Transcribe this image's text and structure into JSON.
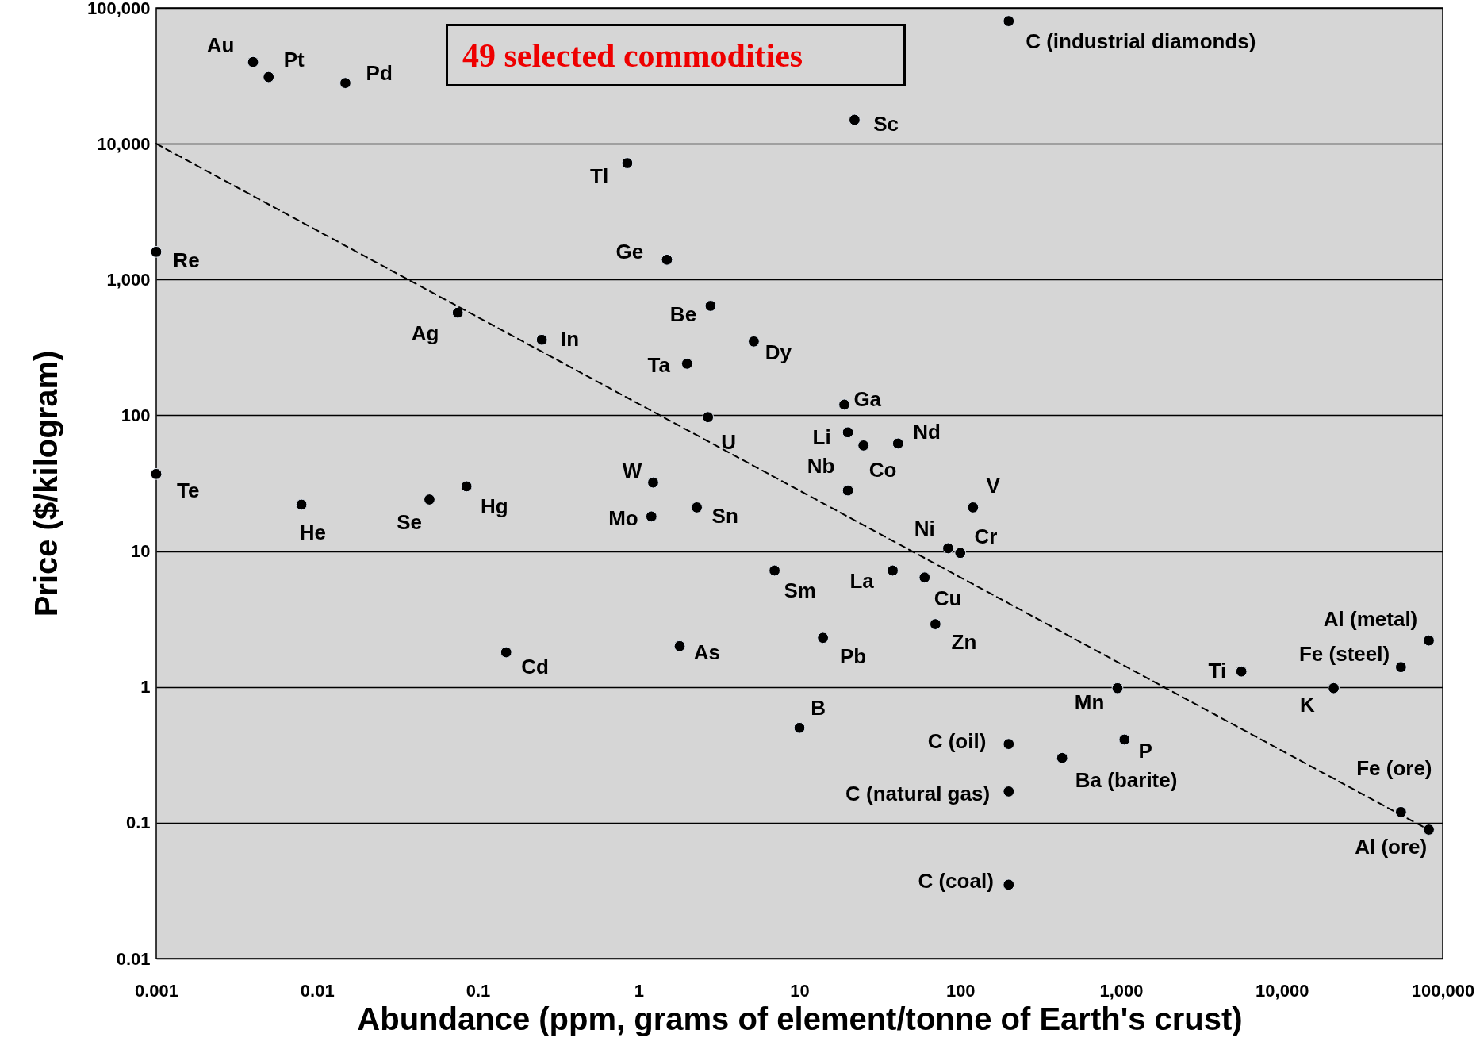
{
  "chart_data": {
    "type": "scatter",
    "xlabel": "Abundance (ppm, grams of element/tonne of Earth's crust)",
    "ylabel": "Price ($/kilogram)",
    "log": "xy",
    "grid": "y",
    "xlim": [
      0.001,
      100000
    ],
    "ylim": [
      0.01,
      100000
    ],
    "xticks": [
      0.001,
      0.01,
      0.1,
      1,
      10,
      100,
      {
        "value": 1000,
        "label": "1,000"
      },
      {
        "value": 10000,
        "label": "10,000"
      },
      {
        "value": 100000,
        "label": "100,000"
      }
    ],
    "yticks": [
      0.01,
      0.1,
      1,
      10,
      100,
      {
        "value": 1000,
        "label": "1,000"
      },
      {
        "value": 10000,
        "label": "10,000"
      },
      {
        "value": 100000,
        "label": "100,000"
      }
    ],
    "series": [
      {
        "color": "#000000",
        "marker": "circle",
        "x": [
          0.004,
          0.005,
          0.015,
          200,
          22,
          0.85,
          0.001,
          1.5,
          0.075,
          0.25,
          2.8,
          5.2,
          2.0,
          19,
          2.7,
          20,
          25,
          41,
          20,
          1.23,
          1.2,
          2.3,
          120,
          0.001,
          0.008,
          0.05,
          0.085,
          84,
          100,
          7.0,
          38,
          60,
          70,
          14,
          1.8,
          0.15,
          5600,
          82000,
          55000,
          21000,
          950,
          10,
          1050,
          200,
          430,
          200,
          55000,
          82000,
          200
        ],
        "values": [
          40000,
          31000,
          28000,
          80000,
          15000,
          7200,
          1600,
          1400,
          570,
          360,
          640,
          350,
          240,
          120,
          97,
          75,
          60,
          62,
          28,
          32,
          18,
          21,
          21,
          37,
          22,
          24,
          30,
          10.5,
          9.7,
          7.2,
          7.2,
          6.4,
          2.9,
          2.3,
          2.0,
          1.8,
          1.3,
          2.2,
          1.4,
          0.98,
          0.98,
          0.5,
          0.41,
          0.38,
          0.3,
          0.17,
          0.12,
          0.089,
          0.035
        ]
      },
      {
        "type": "line",
        "color": "#000000",
        "line_style": "dashed",
        "x": [
          0.001,
          80000
        ],
        "values": [
          10000,
          0.09
        ]
      }
    ],
    "annotations": [
      "49 selected commodities",
      {
        "text": "Au",
        "x": 0.004,
        "y": 40000
      },
      {
        "text": "Pt",
        "x": 0.005,
        "y": 31000
      },
      {
        "text": "Pd",
        "x": 0.015,
        "y": 28000
      },
      {
        "text": "C (industrial diamonds)",
        "x": 200,
        "y": 80000
      },
      {
        "text": "Sc",
        "x": 22,
        "y": 15000
      },
      {
        "text": "Tl",
        "x": 0.85,
        "y": 7200
      },
      {
        "text": "Re",
        "x": 0.001,
        "y": 1600
      },
      {
        "text": "Ge",
        "x": 1.5,
        "y": 1400
      },
      {
        "text": "Ag",
        "x": 0.075,
        "y": 570
      },
      {
        "text": "In",
        "x": 0.25,
        "y": 360
      },
      {
        "text": "Be",
        "x": 2.8,
        "y": 640
      },
      {
        "text": "Dy",
        "x": 5.2,
        "y": 350
      },
      {
        "text": "Ta",
        "x": 2.0,
        "y": 240
      },
      {
        "text": "Ga",
        "x": 19,
        "y": 120
      },
      {
        "text": "U",
        "x": 2.7,
        "y": 97
      },
      {
        "text": "Li",
        "x": 20,
        "y": 75
      },
      {
        "text": "Co",
        "x": 25,
        "y": 60
      },
      {
        "text": "Nd",
        "x": 41,
        "y": 62
      },
      {
        "text": "Nb",
        "x": 20,
        "y": 28
      },
      {
        "text": "W",
        "x": 1.23,
        "y": 32
      },
      {
        "text": "Mo",
        "x": 1.2,
        "y": 18
      },
      {
        "text": "Sn",
        "x": 2.3,
        "y": 21
      },
      {
        "text": "V",
        "x": 120,
        "y": 21
      },
      {
        "text": "Te",
        "x": 0.001,
        "y": 37
      },
      {
        "text": "He",
        "x": 0.008,
        "y": 22
      },
      {
        "text": "Se",
        "x": 0.05,
        "y": 24
      },
      {
        "text": "Hg",
        "x": 0.085,
        "y": 30
      },
      {
        "text": "Ni",
        "x": 84,
        "y": 10.5
      },
      {
        "text": "Cr",
        "x": 100,
        "y": 9.7
      },
      {
        "text": "Sm",
        "x": 7.0,
        "y": 7.2
      },
      {
        "text": "La",
        "x": 38,
        "y": 7.2
      },
      {
        "text": "Cu",
        "x": 60,
        "y": 6.4
      },
      {
        "text": "Zn",
        "x": 70,
        "y": 2.9
      },
      {
        "text": "Pb",
        "x": 14,
        "y": 2.3
      },
      {
        "text": "As",
        "x": 1.8,
        "y": 2.0
      },
      {
        "text": "Cd",
        "x": 0.15,
        "y": 1.8
      },
      {
        "text": "Ti",
        "x": 5600,
        "y": 1.3
      },
      {
        "text": "Al (metal)",
        "x": 82000,
        "y": 2.2
      },
      {
        "text": "Fe (steel)",
        "x": 55000,
        "y": 1.4
      },
      {
        "text": "K",
        "x": 21000,
        "y": 0.98
      },
      {
        "text": "Mn",
        "x": 950,
        "y": 0.98
      },
      {
        "text": "B",
        "x": 10,
        "y": 0.5
      },
      {
        "text": "P",
        "x": 1050,
        "y": 0.41
      },
      {
        "text": "C (oil)",
        "x": 200,
        "y": 0.38
      },
      {
        "text": "Ba (barite)",
        "x": 430,
        "y": 0.3
      },
      {
        "text": "C (natural gas)",
        "x": 200,
        "y": 0.17
      },
      {
        "text": "Fe (ore)",
        "x": 55000,
        "y": 0.12
      },
      {
        "text": "Al (ore)",
        "x": 82000,
        "y": 0.089
      },
      {
        "text": "C (coal)",
        "x": 200,
        "y": 0.035
      }
    ]
  }
}
